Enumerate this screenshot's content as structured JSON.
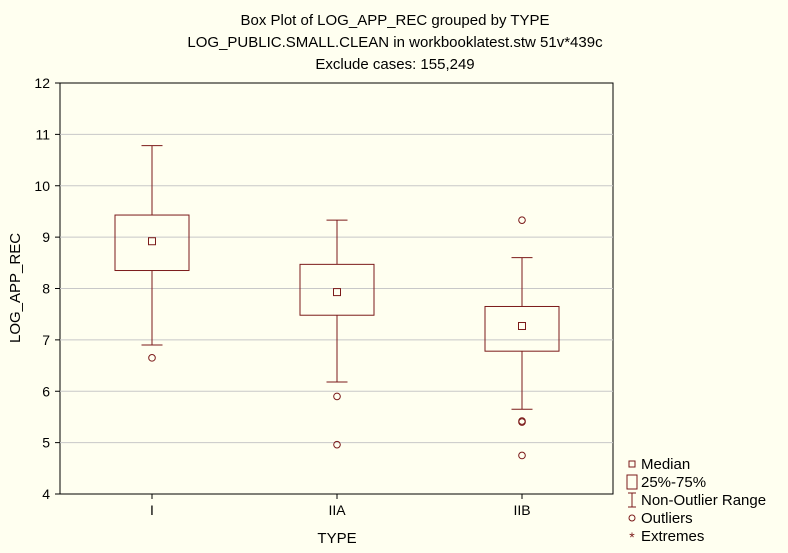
{
  "chart_data": {
    "type": "boxplot",
    "title_lines": [
      "Box Plot of LOG_APP_REC grouped by  TYPE",
      "LOG_PUBLIC.SMALL.CLEAN in workbooklatest.stw 51v*439c",
      "Exclude cases: 155,249"
    ],
    "xlabel": "TYPE",
    "ylabel": "LOG_APP_REC",
    "ylim": [
      4,
      12
    ],
    "yticks": [
      "4",
      "5",
      "6",
      "7",
      "8",
      "9",
      "10",
      "11",
      "12"
    ],
    "categories": [
      "I",
      "IIA",
      "IIB"
    ],
    "boxes": [
      {
        "category": "I",
        "whisker_low": 6.9,
        "q1": 8.35,
        "median": 8.92,
        "q3": 9.43,
        "whisker_high": 10.78,
        "outliers": [
          6.65
        ]
      },
      {
        "category": "IIA",
        "whisker_low": 6.18,
        "q1": 7.48,
        "median": 7.93,
        "q3": 8.47,
        "whisker_high": 9.33,
        "outliers": [
          5.9,
          4.96
        ]
      },
      {
        "category": "IIB",
        "whisker_low": 5.65,
        "q1": 6.78,
        "median": 7.27,
        "q3": 7.65,
        "whisker_high": 8.6,
        "outliers": [
          9.33,
          5.42,
          5.4,
          4.75
        ]
      }
    ],
    "grid": true,
    "legend_position": "bottom-right",
    "legend": [
      "Median",
      "25%-75%",
      "Non-Outlier Range",
      "Outliers",
      "Extremes"
    ],
    "colors": {
      "mark": "#7b1a1a",
      "background": "#fffff0",
      "grid": "#c8c8c8"
    }
  }
}
